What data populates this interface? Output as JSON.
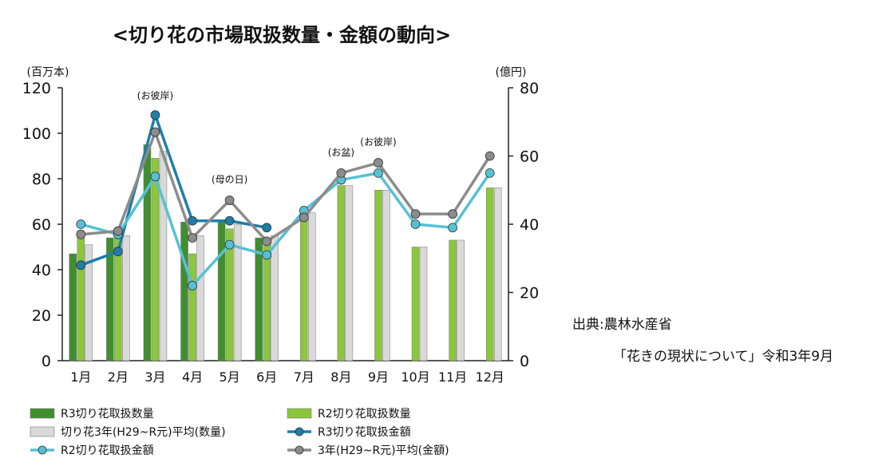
{
  "chart_data": {
    "type": "bar",
    "title": "<切り花の市場取扱数量・金額の動向>",
    "y_left_label": "(百万本)",
    "y_right_label": "(億円)",
    "y_left_range": [
      0,
      120
    ],
    "y_right_range": [
      0,
      80
    ],
    "y_left_ticks": [
      "0",
      "20",
      "40",
      "60",
      "80",
      "100",
      "120"
    ],
    "y_right_ticks": [
      "0",
      "20",
      "40",
      "60",
      "80"
    ],
    "categories": [
      "1月",
      "2月",
      "3月",
      "4月",
      "5月",
      "6月",
      "7月",
      "8月",
      "9月",
      "10月",
      "11月",
      "12月"
    ],
    "bar_series": [
      {
        "name": "R3切り花取扱数量",
        "color": "#3f8f2e",
        "values": [
          47,
          54,
          95,
          61,
          61,
          54,
          null,
          null,
          null,
          null,
          null,
          null
        ]
      },
      {
        "name": "R2切り花取扱数量",
        "color": "#8cc63f",
        "values": [
          57,
          54,
          89,
          47,
          58,
          53,
          64,
          77,
          75,
          50,
          53,
          76
        ]
      },
      {
        "name": "切り花3年(H29~R元)平均(数量)",
        "color": "#d9d9d9",
        "values": [
          51,
          55,
          92,
          55,
          60,
          55,
          65,
          77,
          75,
          50,
          53,
          76
        ]
      }
    ],
    "line_series": [
      {
        "name": "R3切り花取扱金額",
        "color": "#1f7ea8",
        "values": [
          28,
          32,
          72,
          41,
          41,
          39,
          null,
          null,
          null,
          null,
          null,
          null
        ]
      },
      {
        "name": "R2切り花取扱金額",
        "color": "#56c1d4",
        "values": [
          40,
          37,
          54,
          22,
          34,
          31,
          44,
          53,
          55,
          40,
          39,
          55
        ]
      },
      {
        "name": "3年(H29~R元)平均(金額)",
        "color": "#8c8c8c",
        "values": [
          37,
          38,
          67,
          36,
          47,
          35,
          42,
          55,
          58,
          43,
          43,
          60
        ]
      }
    ],
    "event_annotations": [
      {
        "text": "(お彼岸)",
        "month": "3月"
      },
      {
        "text": "(母の日)",
        "month": "5月"
      },
      {
        "text": "(お盆)",
        "month": "8月"
      },
      {
        "text": "(お彼岸)",
        "month": "9月"
      }
    ],
    "legend": [
      "R3切り花取扱数量",
      "R2切り花取扱数量",
      "切り花3年(H29~R元)平均(数量)",
      "R3切り花取扱金額",
      "R2切り花取扱金額",
      "3年(H29~R元)平均(金額)"
    ],
    "legend_placement": "bottom",
    "grid": false
  },
  "source": {
    "label": "出典:農林水産省",
    "document": "「花きの現状について」令和3年9月"
  }
}
